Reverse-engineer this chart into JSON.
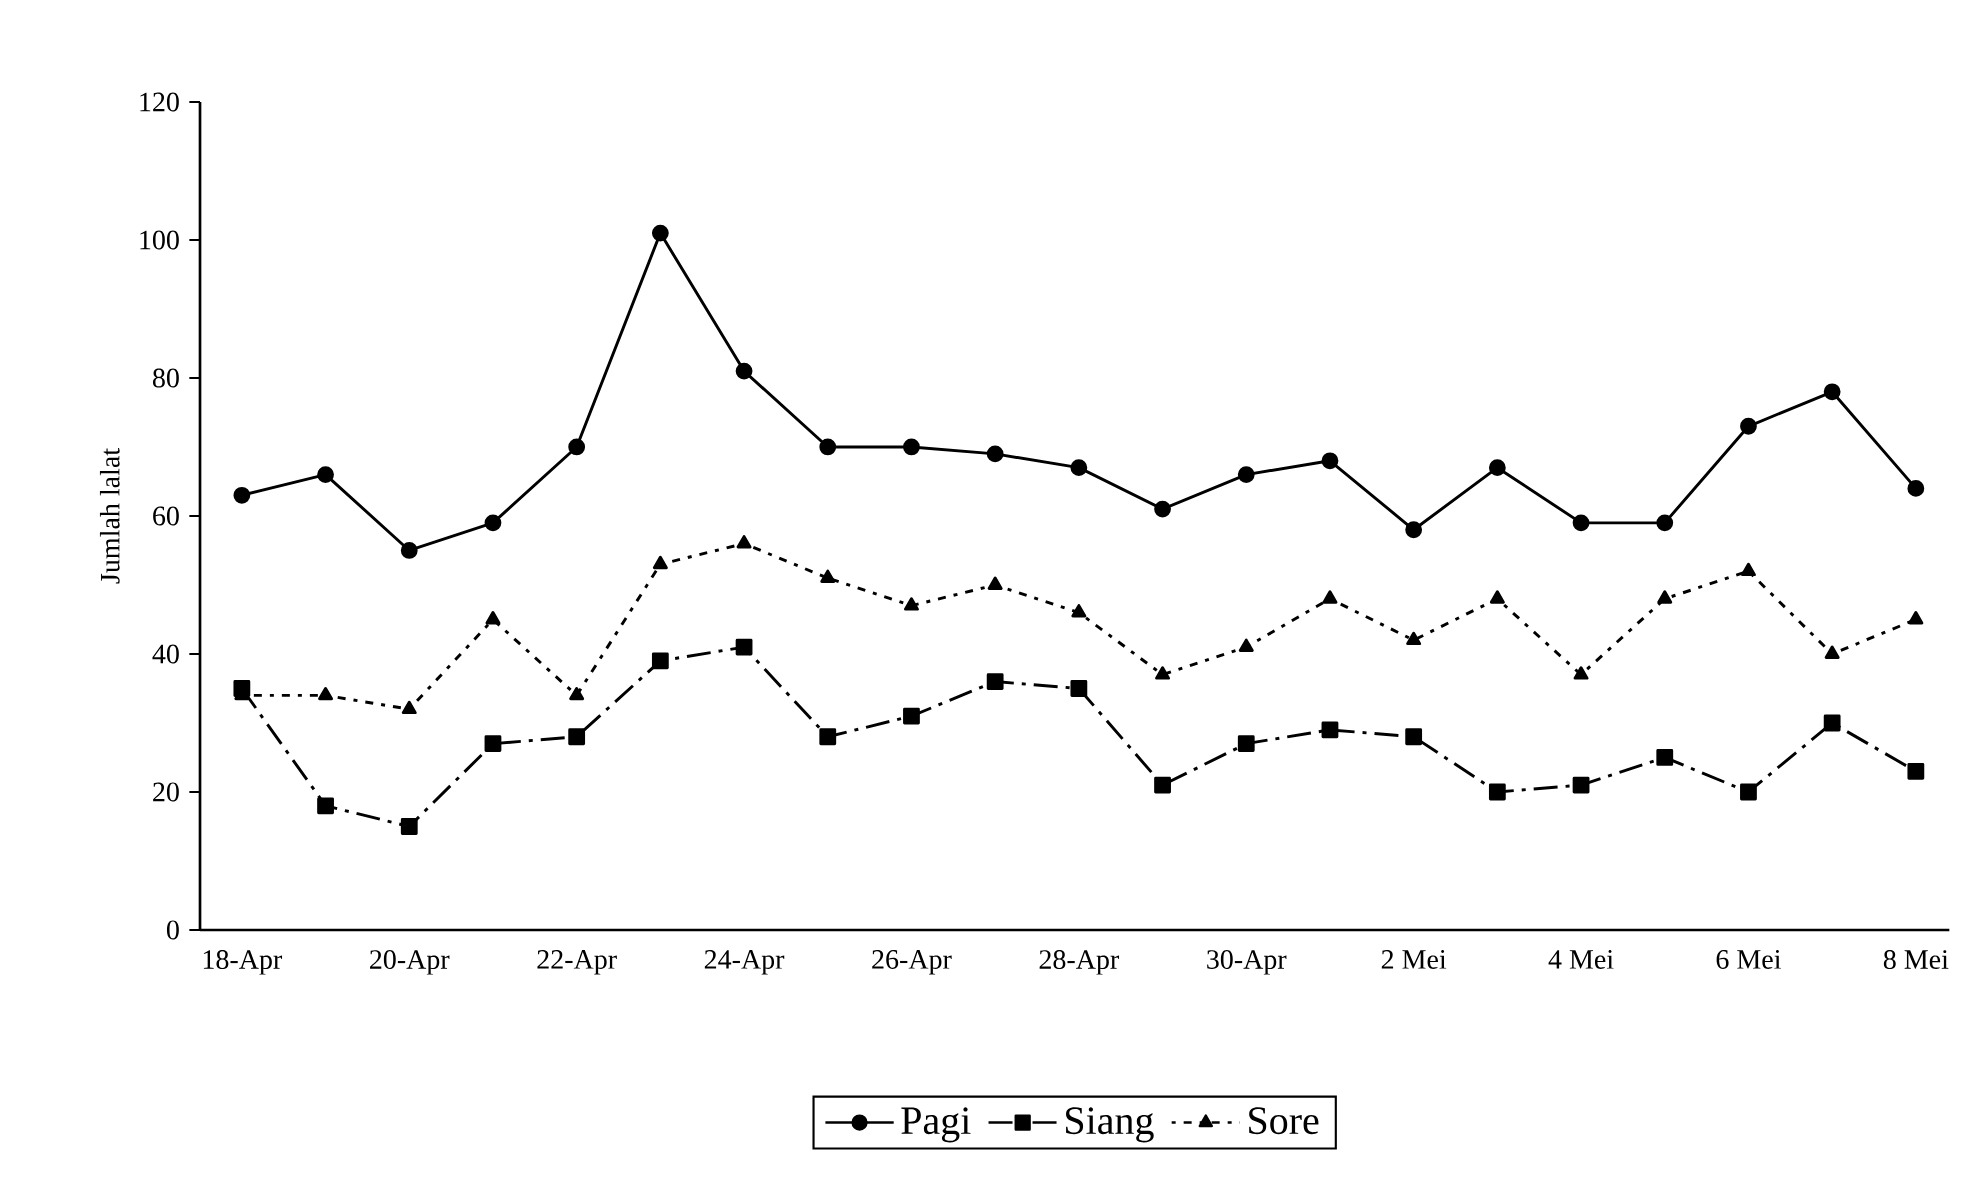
{
  "chart_data": {
    "type": "line",
    "ylabel": "Jumlah lalat",
    "categories": [
      "18-Apr",
      null,
      "20-Apr",
      null,
      "22-Apr",
      null,
      "24-Apr",
      null,
      "26-Apr",
      null,
      "28-Apr",
      null,
      "30-Apr",
      null,
      "2 Mei",
      null,
      "4 Mei",
      null,
      "6 Mei",
      null,
      "8 Mei"
    ],
    "series": [
      {
        "name": "Pagi",
        "color": "#000000",
        "marker": "circle",
        "line_style": "solid",
        "values": [
          63,
          66,
          55,
          59,
          70,
          101,
          81,
          70,
          70,
          69,
          67,
          61,
          66,
          68,
          58,
          67,
          59,
          59,
          73,
          78,
          64
        ]
      },
      {
        "name": "Siang",
        "color": "#000000",
        "marker": "square",
        "line_style": "dashed",
        "values": [
          35,
          18,
          15,
          27,
          28,
          39,
          41,
          28,
          31,
          36,
          35,
          21,
          27,
          29,
          28,
          20,
          21,
          25,
          20,
          30,
          23
        ]
      },
      {
        "name": "Sore",
        "color": "#000000",
        "marker": "triangle",
        "line_style": "dotted",
        "values": [
          34,
          34,
          32,
          45,
          34,
          53,
          56,
          51,
          47,
          50,
          46,
          37,
          41,
          48,
          42,
          48,
          37,
          48,
          52,
          40,
          45
        ]
      }
    ],
    "ylim": [
      0,
      120
    ],
    "yticks": [
      0,
      20,
      40,
      60,
      80,
      100,
      120
    ],
    "grid": false,
    "legend": "bottom"
  }
}
